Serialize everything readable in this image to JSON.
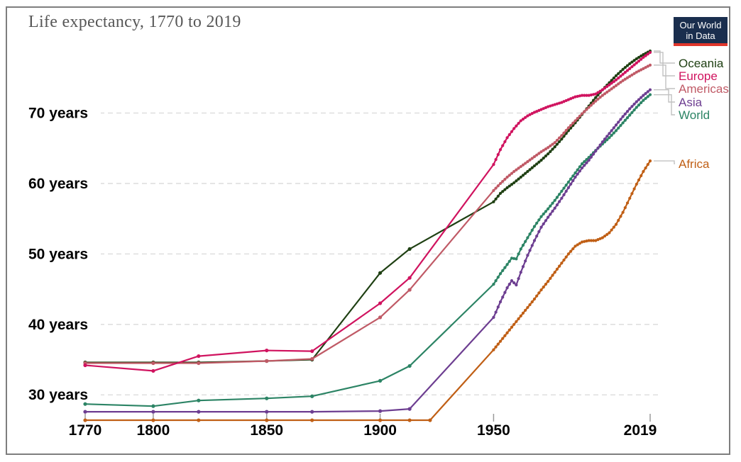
{
  "header": {
    "title": "Life expectancy, 1770 to 2019",
    "logo": {
      "line1": "Our World",
      "line2": "in Data"
    },
    "logo_colors": {
      "background": "#1A2E4E",
      "underline": "#E0362C",
      "text": "#FFFFFF"
    }
  },
  "chart_data": {
    "type": "line",
    "title": "Life expectancy, 1770 to 2019",
    "xlabel": "",
    "ylabel": "years",
    "xlim": [
      1770,
      2019
    ],
    "ylim": [
      25.7,
      79.0
    ],
    "grid": "horizontal-dashed",
    "legend_position": "right",
    "x_ticks": [
      {
        "year": 1770,
        "label": "1770"
      },
      {
        "year": 1800,
        "label": "1800"
      },
      {
        "year": 1850,
        "label": "1850"
      },
      {
        "year": 1900,
        "label": "1900"
      },
      {
        "year": 1950,
        "label": "1950"
      },
      {
        "year": 2019,
        "label": "2019"
      }
    ],
    "y_ticks": [
      {
        "value": 30,
        "label": "30 years"
      },
      {
        "value": 40,
        "label": "40 years"
      },
      {
        "value": 50,
        "label": "50 years"
      },
      {
        "value": 60,
        "label": "60 years"
      },
      {
        "value": 70,
        "label": "70 years"
      }
    ],
    "series": [
      {
        "name": "Oceania",
        "color": "#1F4013",
        "points": [
          [
            1770,
            34.6
          ],
          [
            1800,
            34.6
          ],
          [
            1820,
            34.6
          ],
          [
            1850,
            34.8
          ],
          [
            1870,
            35.0
          ],
          [
            1900,
            47.3
          ],
          [
            1913,
            50.7
          ],
          [
            1950,
            57.4
          ],
          [
            1953,
            58.6
          ],
          [
            1956,
            59.4
          ],
          [
            1959,
            60.1
          ],
          [
            1962,
            60.9
          ],
          [
            1965,
            61.7
          ],
          [
            1968,
            62.5
          ],
          [
            1971,
            63.3
          ],
          [
            1974,
            64.2
          ],
          [
            1977,
            65.2
          ],
          [
            1980,
            66.3
          ],
          [
            1983,
            67.5
          ],
          [
            1986,
            68.6
          ],
          [
            1989,
            69.8
          ],
          [
            1992,
            71.0
          ],
          [
            1995,
            72.2
          ],
          [
            1998,
            73.3
          ],
          [
            2001,
            74.3
          ],
          [
            2004,
            75.3
          ],
          [
            2007,
            76.2
          ],
          [
            2010,
            77.0
          ],
          [
            2013,
            77.7
          ],
          [
            2016,
            78.3
          ],
          [
            2019,
            78.8
          ]
        ]
      },
      {
        "name": "Europe",
        "color": "#D0135F",
        "points": [
          [
            1770,
            34.2
          ],
          [
            1800,
            33.4
          ],
          [
            1820,
            35.5
          ],
          [
            1850,
            36.3
          ],
          [
            1870,
            36.2
          ],
          [
            1900,
            43.0
          ],
          [
            1913,
            46.6
          ],
          [
            1950,
            62.7
          ],
          [
            1953,
            64.8
          ],
          [
            1956,
            66.5
          ],
          [
            1959,
            67.8
          ],
          [
            1962,
            68.9
          ],
          [
            1965,
            69.6
          ],
          [
            1968,
            70.1
          ],
          [
            1971,
            70.5
          ],
          [
            1974,
            70.9
          ],
          [
            1977,
            71.2
          ],
          [
            1980,
            71.5
          ],
          [
            1983,
            71.9
          ],
          [
            1986,
            72.3
          ],
          [
            1989,
            72.5
          ],
          [
            1992,
            72.5
          ],
          [
            1995,
            72.7
          ],
          [
            1998,
            73.3
          ],
          [
            2001,
            74.0
          ],
          [
            2004,
            74.7
          ],
          [
            2007,
            75.5
          ],
          [
            2010,
            76.3
          ],
          [
            2013,
            77.1
          ],
          [
            2016,
            77.9
          ],
          [
            2019,
            78.6
          ]
        ]
      },
      {
        "name": "Americas",
        "color": "#C05A66",
        "points": [
          [
            1770,
            34.5
          ],
          [
            1800,
            34.5
          ],
          [
            1820,
            34.5
          ],
          [
            1850,
            34.8
          ],
          [
            1870,
            35.1
          ],
          [
            1900,
            41.0
          ],
          [
            1913,
            44.9
          ],
          [
            1950,
            59.0
          ],
          [
            1953,
            60.0
          ],
          [
            1956,
            60.9
          ],
          [
            1959,
            61.7
          ],
          [
            1962,
            62.4
          ],
          [
            1965,
            63.1
          ],
          [
            1968,
            63.8
          ],
          [
            1971,
            64.5
          ],
          [
            1974,
            65.1
          ],
          [
            1977,
            65.8
          ],
          [
            1980,
            66.8
          ],
          [
            1983,
            67.9
          ],
          [
            1986,
            68.9
          ],
          [
            1989,
            69.9
          ],
          [
            1992,
            70.8
          ],
          [
            1995,
            71.7
          ],
          [
            1998,
            72.5
          ],
          [
            2001,
            73.2
          ],
          [
            2004,
            73.9
          ],
          [
            2007,
            74.6
          ],
          [
            2010,
            75.2
          ],
          [
            2013,
            75.8
          ],
          [
            2016,
            76.3
          ],
          [
            2019,
            76.8
          ]
        ]
      },
      {
        "name": "Asia",
        "color": "#6D3E91",
        "points": [
          [
            1770,
            27.6
          ],
          [
            1800,
            27.6
          ],
          [
            1820,
            27.6
          ],
          [
            1850,
            27.6
          ],
          [
            1870,
            27.6
          ],
          [
            1900,
            27.7
          ],
          [
            1913,
            28.0
          ],
          [
            1950,
            41.0
          ],
          [
            1953,
            43.2
          ],
          [
            1956,
            45.2
          ],
          [
            1958,
            46.2
          ],
          [
            1960,
            45.6
          ],
          [
            1962,
            47.4
          ],
          [
            1965,
            49.8
          ],
          [
            1968,
            51.9
          ],
          [
            1971,
            53.8
          ],
          [
            1974,
            55.2
          ],
          [
            1977,
            56.5
          ],
          [
            1980,
            57.9
          ],
          [
            1983,
            59.4
          ],
          [
            1986,
            60.9
          ],
          [
            1989,
            62.2
          ],
          [
            1992,
            63.3
          ],
          [
            1995,
            64.6
          ],
          [
            1998,
            65.9
          ],
          [
            2001,
            67.1
          ],
          [
            2004,
            68.3
          ],
          [
            2007,
            69.5
          ],
          [
            2010,
            70.6
          ],
          [
            2013,
            71.6
          ],
          [
            2016,
            72.5
          ],
          [
            2019,
            73.3
          ]
        ]
      },
      {
        "name": "World",
        "color": "#2C8465",
        "points": [
          [
            1770,
            28.7
          ],
          [
            1800,
            28.4
          ],
          [
            1820,
            29.2
          ],
          [
            1850,
            29.5
          ],
          [
            1870,
            29.8
          ],
          [
            1900,
            32.0
          ],
          [
            1913,
            34.1
          ],
          [
            1950,
            45.7
          ],
          [
            1953,
            47.2
          ],
          [
            1956,
            48.5
          ],
          [
            1958,
            49.4
          ],
          [
            1960,
            49.3
          ],
          [
            1962,
            50.7
          ],
          [
            1965,
            52.3
          ],
          [
            1968,
            53.9
          ],
          [
            1971,
            55.3
          ],
          [
            1974,
            56.4
          ],
          [
            1977,
            57.6
          ],
          [
            1980,
            58.9
          ],
          [
            1983,
            60.2
          ],
          [
            1986,
            61.5
          ],
          [
            1989,
            62.8
          ],
          [
            1992,
            63.7
          ],
          [
            1995,
            64.7
          ],
          [
            1998,
            65.6
          ],
          [
            2001,
            66.5
          ],
          [
            2004,
            67.5
          ],
          [
            2007,
            68.6
          ],
          [
            2010,
            69.7
          ],
          [
            2013,
            70.8
          ],
          [
            2016,
            71.8
          ],
          [
            2019,
            72.6
          ]
        ]
      },
      {
        "name": "Africa",
        "color": "#C05F15",
        "points": [
          [
            1770,
            26.4
          ],
          [
            1800,
            26.4
          ],
          [
            1820,
            26.4
          ],
          [
            1850,
            26.4
          ],
          [
            1870,
            26.4
          ],
          [
            1900,
            26.4
          ],
          [
            1913,
            26.4
          ],
          [
            1922,
            26.4
          ],
          [
            1950,
            36.4
          ],
          [
            1953,
            37.6
          ],
          [
            1956,
            38.8
          ],
          [
            1959,
            40.0
          ],
          [
            1962,
            41.2
          ],
          [
            1965,
            42.4
          ],
          [
            1968,
            43.6
          ],
          [
            1971,
            44.9
          ],
          [
            1974,
            46.1
          ],
          [
            1977,
            47.4
          ],
          [
            1980,
            48.7
          ],
          [
            1983,
            50.0
          ],
          [
            1986,
            51.1
          ],
          [
            1989,
            51.7
          ],
          [
            1992,
            51.9
          ],
          [
            1995,
            51.9
          ],
          [
            1998,
            52.3
          ],
          [
            2001,
            53.0
          ],
          [
            2004,
            54.2
          ],
          [
            2007,
            55.9
          ],
          [
            2010,
            57.9
          ],
          [
            2013,
            59.9
          ],
          [
            2016,
            61.7
          ],
          [
            2019,
            63.2
          ]
        ]
      }
    ]
  }
}
